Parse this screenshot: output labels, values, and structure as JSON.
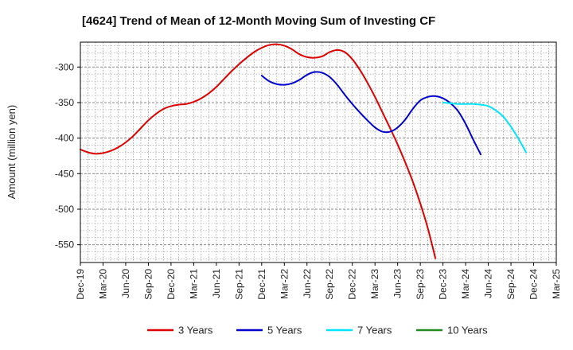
{
  "chart_data": {
    "type": "line",
    "title": "[4624]  Trend of Mean of 12-Month Moving Sum of Investing CF",
    "xlabel": "",
    "ylabel": "Amount (million yen)",
    "ylim": [
      -575,
      -265
    ],
    "yticks": [
      -300,
      -350,
      -400,
      -450,
      -500,
      -550
    ],
    "x_tick_labels": [
      "Dec-19",
      "Mar-20",
      "Jun-20",
      "Sep-20",
      "Dec-20",
      "Mar-21",
      "Jun-21",
      "Sep-21",
      "Dec-21",
      "Mar-22",
      "Jun-22",
      "Sep-22",
      "Dec-22",
      "Mar-23",
      "Jun-23",
      "Sep-23",
      "Dec-23",
      "Mar-24",
      "Jun-24",
      "Sep-24",
      "Dec-24",
      "Mar-25"
    ],
    "grid": true,
    "legend_position": "bottom",
    "series": [
      {
        "name": "3 Years",
        "color": "#dd0000",
        "start_index": 0,
        "values": [
          -416,
          -420,
          -422,
          -421,
          -418,
          -413,
          -406,
          -397,
          -386,
          -375,
          -366,
          -359,
          -355,
          -353,
          -352,
          -349,
          -344,
          -337,
          -328,
          -317,
          -306,
          -296,
          -287,
          -279,
          -273,
          -269,
          -268,
          -270,
          -275,
          -282,
          -286,
          -287,
          -285,
          -279,
          -276,
          -279,
          -289,
          -304,
          -322,
          -342,
          -364,
          -386,
          -409,
          -434,
          -461,
          -492,
          -527,
          -569
        ]
      },
      {
        "name": "5 Years",
        "color": "#0000cc",
        "start_index": 24,
        "values": [
          -312,
          -320,
          -324,
          -325,
          -323,
          -318,
          -311,
          -307,
          -308,
          -314,
          -325,
          -339,
          -352,
          -364,
          -375,
          -385,
          -391,
          -391,
          -385,
          -374,
          -359,
          -347,
          -342,
          -341,
          -344,
          -351,
          -362,
          -380,
          -402,
          -423
        ]
      },
      {
        "name": "7 Years",
        "color": "#00e5ff",
        "start_index": 48,
        "values": [
          -350,
          -351,
          -352,
          -352,
          -352,
          -353,
          -355,
          -361,
          -370,
          -384,
          -401,
          -420
        ]
      },
      {
        "name": "10 Years",
        "color": "#228B22",
        "start_index": 0,
        "values": []
      }
    ]
  }
}
